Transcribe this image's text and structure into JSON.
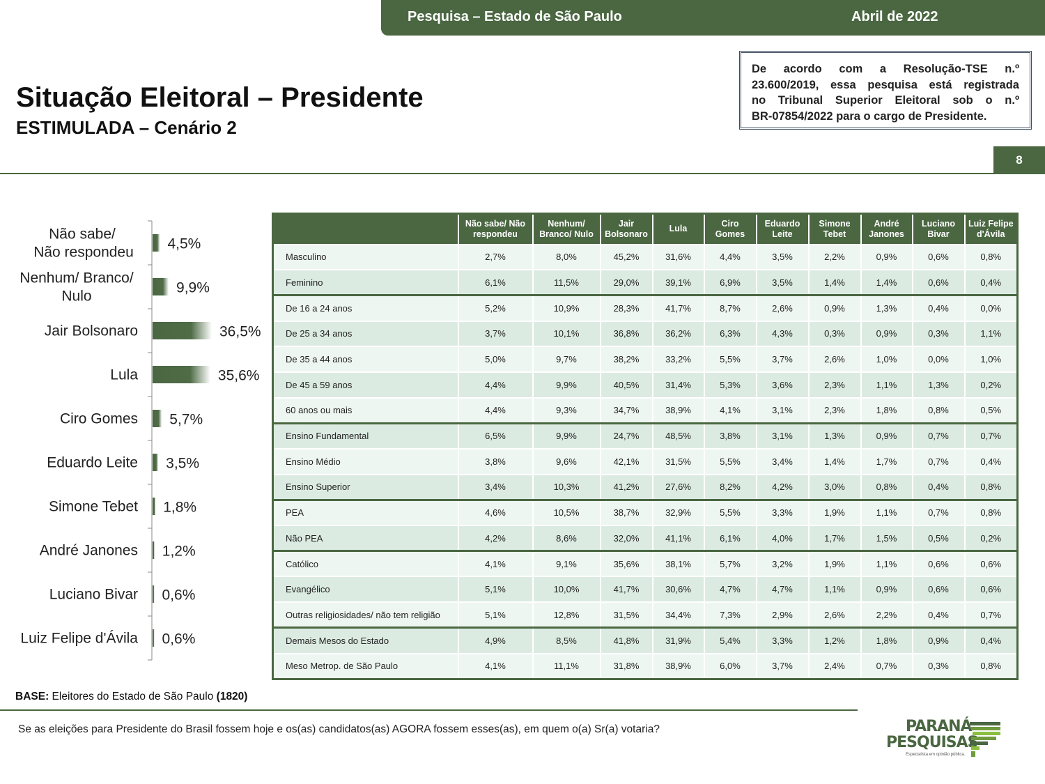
{
  "header": {
    "survey": "Pesquisa – Estado de São Paulo",
    "date": "Abril de 2022"
  },
  "title": "Situação Eleitoral – Presidente",
  "subtitle": "ESTIMULADA – Cenário 2",
  "tse_notice": {
    "lines": [
      "De acordo com a Resolução-TSE n.º",
      "23.600/2019, essa pesquisa está registrada",
      "no Tribunal Superior Eleitoral sob o n.º"
    ],
    "reg_number": "BR-07854/2022",
    "suffix": " para o cargo de Presidente."
  },
  "page_number": "8",
  "chart_data": {
    "type": "bar",
    "orientation": "horizontal",
    "categories": [
      "Não sabe/ Não respondeu",
      "Nenhum/ Branco/ Nulo",
      "Jair Bolsonaro",
      "Lula",
      "Ciro Gomes",
      "Eduardo Leite",
      "Simone Tebet",
      "André Janones",
      "Luciano Bivar",
      "Luiz Felipe d'Ávila"
    ],
    "category_lines": [
      [
        "Não sabe/",
        "Não respondeu"
      ],
      [
        "Nenhum/ Branco/",
        "Nulo"
      ],
      [
        "Jair Bolsonaro"
      ],
      [
        "Lula"
      ],
      [
        "Ciro Gomes"
      ],
      [
        "Eduardo Leite"
      ],
      [
        "Simone Tebet"
      ],
      [
        "André Janones"
      ],
      [
        "Luciano Bivar"
      ],
      [
        "Luiz Felipe d'Ávila"
      ]
    ],
    "values": [
      4.5,
      9.9,
      36.5,
      35.6,
      5.7,
      3.5,
      1.8,
      1.2,
      0.6,
      0.6
    ],
    "labels": [
      "4,5%",
      "9,9%",
      "36,5%",
      "35,6%",
      "5,7%",
      "3,5%",
      "1,8%",
      "1,2%",
      "0,6%",
      "0,6%"
    ],
    "bar_color": "#4a6741"
  },
  "table": {
    "headers": [
      [
        "Não sabe/ Não",
        "respondeu"
      ],
      [
        "Nenhum/",
        "Branco/ Nulo"
      ],
      [
        "Jair",
        "Bolsonaro"
      ],
      [
        "Lula"
      ],
      [
        "Ciro",
        "Gomes"
      ],
      [
        "Eduardo",
        "Leite"
      ],
      [
        "Simone",
        "Tebet"
      ],
      [
        "André",
        "Janones"
      ],
      [
        "Luciano",
        "Bivar"
      ],
      [
        "Luiz Felipe",
        "d'Ávila"
      ]
    ],
    "rows": [
      {
        "label": "Masculino",
        "values": [
          "2,7%",
          "8,0%",
          "45,2%",
          "31,6%",
          "4,4%",
          "3,5%",
          "2,2%",
          "0,9%",
          "0,6%",
          "0,8%"
        ]
      },
      {
        "label": "Feminino",
        "values": [
          "6,1%",
          "11,5%",
          "29,0%",
          "39,1%",
          "6,9%",
          "3,5%",
          "1,4%",
          "1,4%",
          "0,6%",
          "0,4%"
        ]
      },
      {
        "label": "De 16 a 24 anos",
        "values": [
          "5,2%",
          "10,9%",
          "28,3%",
          "41,7%",
          "8,7%",
          "2,6%",
          "0,9%",
          "1,3%",
          "0,4%",
          "0,0%"
        ]
      },
      {
        "label": "De 25 a 34 anos",
        "values": [
          "3,7%",
          "10,1%",
          "36,8%",
          "36,2%",
          "6,3%",
          "4,3%",
          "0,3%",
          "0,9%",
          "0,3%",
          "1,1%"
        ]
      },
      {
        "label": "De 35 a 44 anos",
        "values": [
          "5,0%",
          "9,7%",
          "38,2%",
          "33,2%",
          "5,5%",
          "3,7%",
          "2,6%",
          "1,0%",
          "0,0%",
          "1,0%"
        ]
      },
      {
        "label": "De 45 a 59 anos",
        "values": [
          "4,4%",
          "9,9%",
          "40,5%",
          "31,4%",
          "5,3%",
          "3,6%",
          "2,3%",
          "1,1%",
          "1,3%",
          "0,2%"
        ]
      },
      {
        "label": "60 anos ou mais",
        "values": [
          "4,4%",
          "9,3%",
          "34,7%",
          "38,9%",
          "4,1%",
          "3,1%",
          "2,3%",
          "1,8%",
          "0,8%",
          "0,5%"
        ]
      },
      {
        "label": "Ensino Fundamental",
        "values": [
          "6,5%",
          "9,9%",
          "24,7%",
          "48,5%",
          "3,8%",
          "3,1%",
          "1,3%",
          "0,9%",
          "0,7%",
          "0,7%"
        ]
      },
      {
        "label": "Ensino Médio",
        "values": [
          "3,8%",
          "9,6%",
          "42,1%",
          "31,5%",
          "5,5%",
          "3,4%",
          "1,4%",
          "1,7%",
          "0,7%",
          "0,4%"
        ]
      },
      {
        "label": "Ensino Superior",
        "values": [
          "3,4%",
          "10,3%",
          "41,2%",
          "27,6%",
          "8,2%",
          "4,2%",
          "3,0%",
          "0,8%",
          "0,4%",
          "0,8%"
        ]
      },
      {
        "label": "PEA",
        "values": [
          "4,6%",
          "10,5%",
          "38,7%",
          "32,9%",
          "5,5%",
          "3,3%",
          "1,9%",
          "1,1%",
          "0,7%",
          "0,8%"
        ]
      },
      {
        "label": "Não PEA",
        "values": [
          "4,2%",
          "8,6%",
          "32,0%",
          "41,1%",
          "6,1%",
          "4,0%",
          "1,7%",
          "1,5%",
          "0,5%",
          "0,2%"
        ]
      },
      {
        "label": "Católico",
        "values": [
          "4,1%",
          "9,1%",
          "35,6%",
          "38,1%",
          "5,7%",
          "3,2%",
          "1,9%",
          "1,1%",
          "0,6%",
          "0,6%"
        ]
      },
      {
        "label": "Evangélico",
        "values": [
          "5,1%",
          "10,0%",
          "41,7%",
          "30,6%",
          "4,7%",
          "4,7%",
          "1,1%",
          "0,9%",
          "0,6%",
          "0,6%"
        ]
      },
      {
        "label": "Outras religiosidades/ não tem religião",
        "values": [
          "5,1%",
          "12,8%",
          "31,5%",
          "34,4%",
          "7,3%",
          "2,9%",
          "2,6%",
          "2,2%",
          "0,4%",
          "0,7%"
        ]
      },
      {
        "label": "Demais Mesos do Estado",
        "values": [
          "4,9%",
          "8,5%",
          "41,8%",
          "31,9%",
          "5,4%",
          "3,3%",
          "1,2%",
          "1,8%",
          "0,9%",
          "0,4%"
        ]
      },
      {
        "label": "Meso Metrop. de São Paulo",
        "values": [
          "4,1%",
          "11,1%",
          "31,8%",
          "38,9%",
          "6,0%",
          "3,7%",
          "2,4%",
          "0,7%",
          "0,3%",
          "0,8%"
        ]
      }
    ],
    "group_starts": [
      2,
      7,
      10,
      12,
      15
    ]
  },
  "base": {
    "label": "BASE:",
    "text": " Eleitores do Estado de São Paulo ",
    "count": "(1820)"
  },
  "question": "Se as eleições para Presidente do Brasil fossem hoje e os(as) candidatos(as) AGORA fossem esses(as), em quem o(a) Sr(a) votaria?",
  "logo": {
    "line1": "PARANÁ",
    "line2": "PESQUISAS",
    "tagline": "Especialista em opinião pública."
  }
}
